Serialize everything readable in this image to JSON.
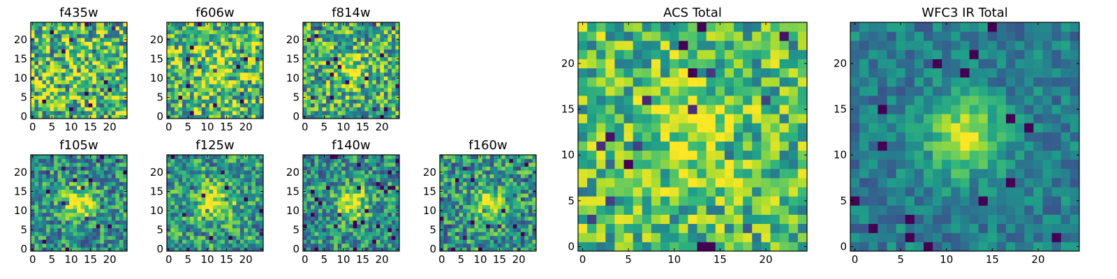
{
  "chart_data": [
    {
      "id": "f435w",
      "type": "heatmap",
      "title": "f435w",
      "grid_size": 25,
      "xticks": [
        0,
        5,
        10,
        15,
        20
      ],
      "yticks": [
        0,
        5,
        10,
        15,
        20
      ],
      "xlim": [
        0,
        24
      ],
      "ylim": [
        0,
        24
      ],
      "colormap": "viridis",
      "source_peak": 0.05,
      "source_sigma": 3,
      "noise": 0.42,
      "baseline": 0.68,
      "seed": 11
    },
    {
      "id": "f606w",
      "type": "heatmap",
      "title": "f606w",
      "grid_size": 25,
      "xticks": [
        0,
        5,
        10,
        15,
        20
      ],
      "yticks": [
        0,
        5,
        10,
        15,
        20
      ],
      "xlim": [
        0,
        24
      ],
      "ylim": [
        0,
        24
      ],
      "colormap": "viridis",
      "source_peak": 0.2,
      "source_sigma": 3.5,
      "noise": 0.38,
      "baseline": 0.68,
      "seed": 23
    },
    {
      "id": "f814w",
      "type": "heatmap",
      "title": "f814w",
      "grid_size": 25,
      "xticks": [
        0,
        5,
        10,
        15,
        20
      ],
      "yticks": [
        0,
        5,
        10,
        15,
        20
      ],
      "xlim": [
        0,
        24
      ],
      "ylim": [
        0,
        24
      ],
      "colormap": "viridis",
      "source_peak": 0.3,
      "source_sigma": 3,
      "noise": 0.36,
      "baseline": 0.62,
      "seed": 37
    },
    {
      "id": "f105w",
      "type": "heatmap",
      "title": "f105w",
      "grid_size": 25,
      "xticks": [
        0,
        5,
        10,
        15,
        20
      ],
      "yticks": [
        0,
        5,
        10,
        15,
        20
      ],
      "xlim": [
        0,
        24
      ],
      "ylim": [
        0,
        24
      ],
      "colormap": "viridis",
      "source_peak": 0.55,
      "source_sigma": 2.8,
      "noise": 0.3,
      "baseline": 0.5,
      "seed": 41
    },
    {
      "id": "f125w",
      "type": "heatmap",
      "title": "f125w",
      "grid_size": 25,
      "xticks": [
        0,
        5,
        10,
        15,
        20
      ],
      "yticks": [
        0,
        5,
        10,
        15,
        20
      ],
      "xlim": [
        0,
        24
      ],
      "ylim": [
        0,
        24
      ],
      "colormap": "viridis",
      "source_peak": 0.45,
      "source_sigma": 3.2,
      "noise": 0.3,
      "baseline": 0.55,
      "seed": 53
    },
    {
      "id": "f140w",
      "type": "heatmap",
      "title": "f140w",
      "grid_size": 25,
      "xticks": [
        0,
        5,
        10,
        15,
        20
      ],
      "yticks": [
        0,
        5,
        10,
        15,
        20
      ],
      "xlim": [
        0,
        24
      ],
      "ylim": [
        0,
        24
      ],
      "colormap": "viridis",
      "source_peak": 0.55,
      "source_sigma": 2.8,
      "noise": 0.3,
      "baseline": 0.5,
      "seed": 67
    },
    {
      "id": "f160w",
      "type": "heatmap",
      "title": "f160w",
      "grid_size": 25,
      "xticks": [
        0,
        5,
        10,
        15,
        20
      ],
      "yticks": [
        0,
        5,
        10,
        15,
        20
      ],
      "xlim": [
        0,
        24
      ],
      "ylim": [
        0,
        24
      ],
      "colormap": "viridis",
      "source_peak": 0.5,
      "source_sigma": 2.6,
      "noise": 0.32,
      "baseline": 0.52,
      "seed": 79
    },
    {
      "id": "acs_total",
      "type": "heatmap",
      "title": "ACS Total",
      "grid_size": 25,
      "xticks": [
        0,
        5,
        10,
        15,
        20
      ],
      "yticks": [
        0,
        5,
        10,
        15,
        20
      ],
      "xlim": [
        0,
        24
      ],
      "ylim": [
        0,
        24
      ],
      "colormap": "viridis",
      "source_peak": 0.25,
      "source_sigma": 3.5,
      "noise": 0.3,
      "baseline": 0.68,
      "seed": 97
    },
    {
      "id": "wfc3_ir_total",
      "type": "heatmap",
      "title": "WFC3 IR Total",
      "grid_size": 25,
      "xticks": [
        0,
        5,
        10,
        15,
        20
      ],
      "yticks": [
        0,
        5,
        10,
        15,
        20
      ],
      "xlim": [
        0,
        24
      ],
      "ylim": [
        0,
        24
      ],
      "colormap": "viridis",
      "source_peak": 0.55,
      "source_sigma": 2.8,
      "noise": 0.16,
      "baseline": 0.42,
      "seed": 113
    }
  ]
}
